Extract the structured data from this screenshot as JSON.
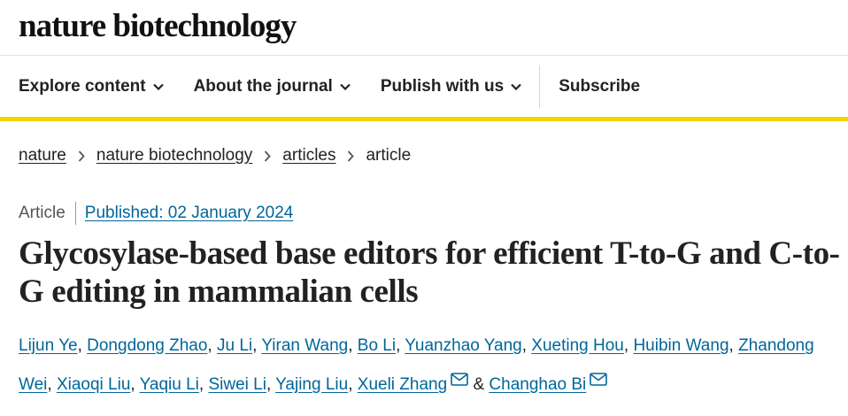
{
  "site": {
    "logo": "nature biotechnology"
  },
  "nav": {
    "items": [
      {
        "label": "Explore content",
        "has_dropdown": true
      },
      {
        "label": "About the journal",
        "has_dropdown": true
      },
      {
        "label": "Publish with us",
        "has_dropdown": true
      }
    ],
    "subscribe": "Subscribe"
  },
  "breadcrumb": [
    {
      "label": "nature"
    },
    {
      "label": "nature biotechnology"
    },
    {
      "label": "articles"
    },
    {
      "label": "article",
      "current": true
    }
  ],
  "article": {
    "type": "Article",
    "published": "Published: 02 January 2024",
    "title": "Glycosylase-based base editors for efficient T-to-G and C-to-G editing in mammalian cells",
    "authors": [
      {
        "name": "Lijun Ye"
      },
      {
        "name": "Dongdong Zhao"
      },
      {
        "name": "Ju Li"
      },
      {
        "name": "Yiran Wang"
      },
      {
        "name": "Bo Li"
      },
      {
        "name": "Yuanzhao Yang"
      },
      {
        "name": "Xueting Hou"
      },
      {
        "name": "Huibin Wang"
      },
      {
        "name": "Zhandong Wei"
      },
      {
        "name": "Xiaoqi Liu"
      },
      {
        "name": "Yaqiu Li"
      },
      {
        "name": "Siwei Li"
      },
      {
        "name": "Yajing Liu"
      },
      {
        "name": "Xueli Zhang",
        "corresponding": true
      },
      {
        "name": "Changhao Bi",
        "corresponding": true
      }
    ]
  },
  "colors": {
    "link": "#006699",
    "accent": "#f2d400",
    "text": "#222222"
  },
  "icons": {
    "dropdown": "chevron-down-icon",
    "breadcrumb_sep": "chevron-right-icon",
    "email": "envelope-icon"
  }
}
